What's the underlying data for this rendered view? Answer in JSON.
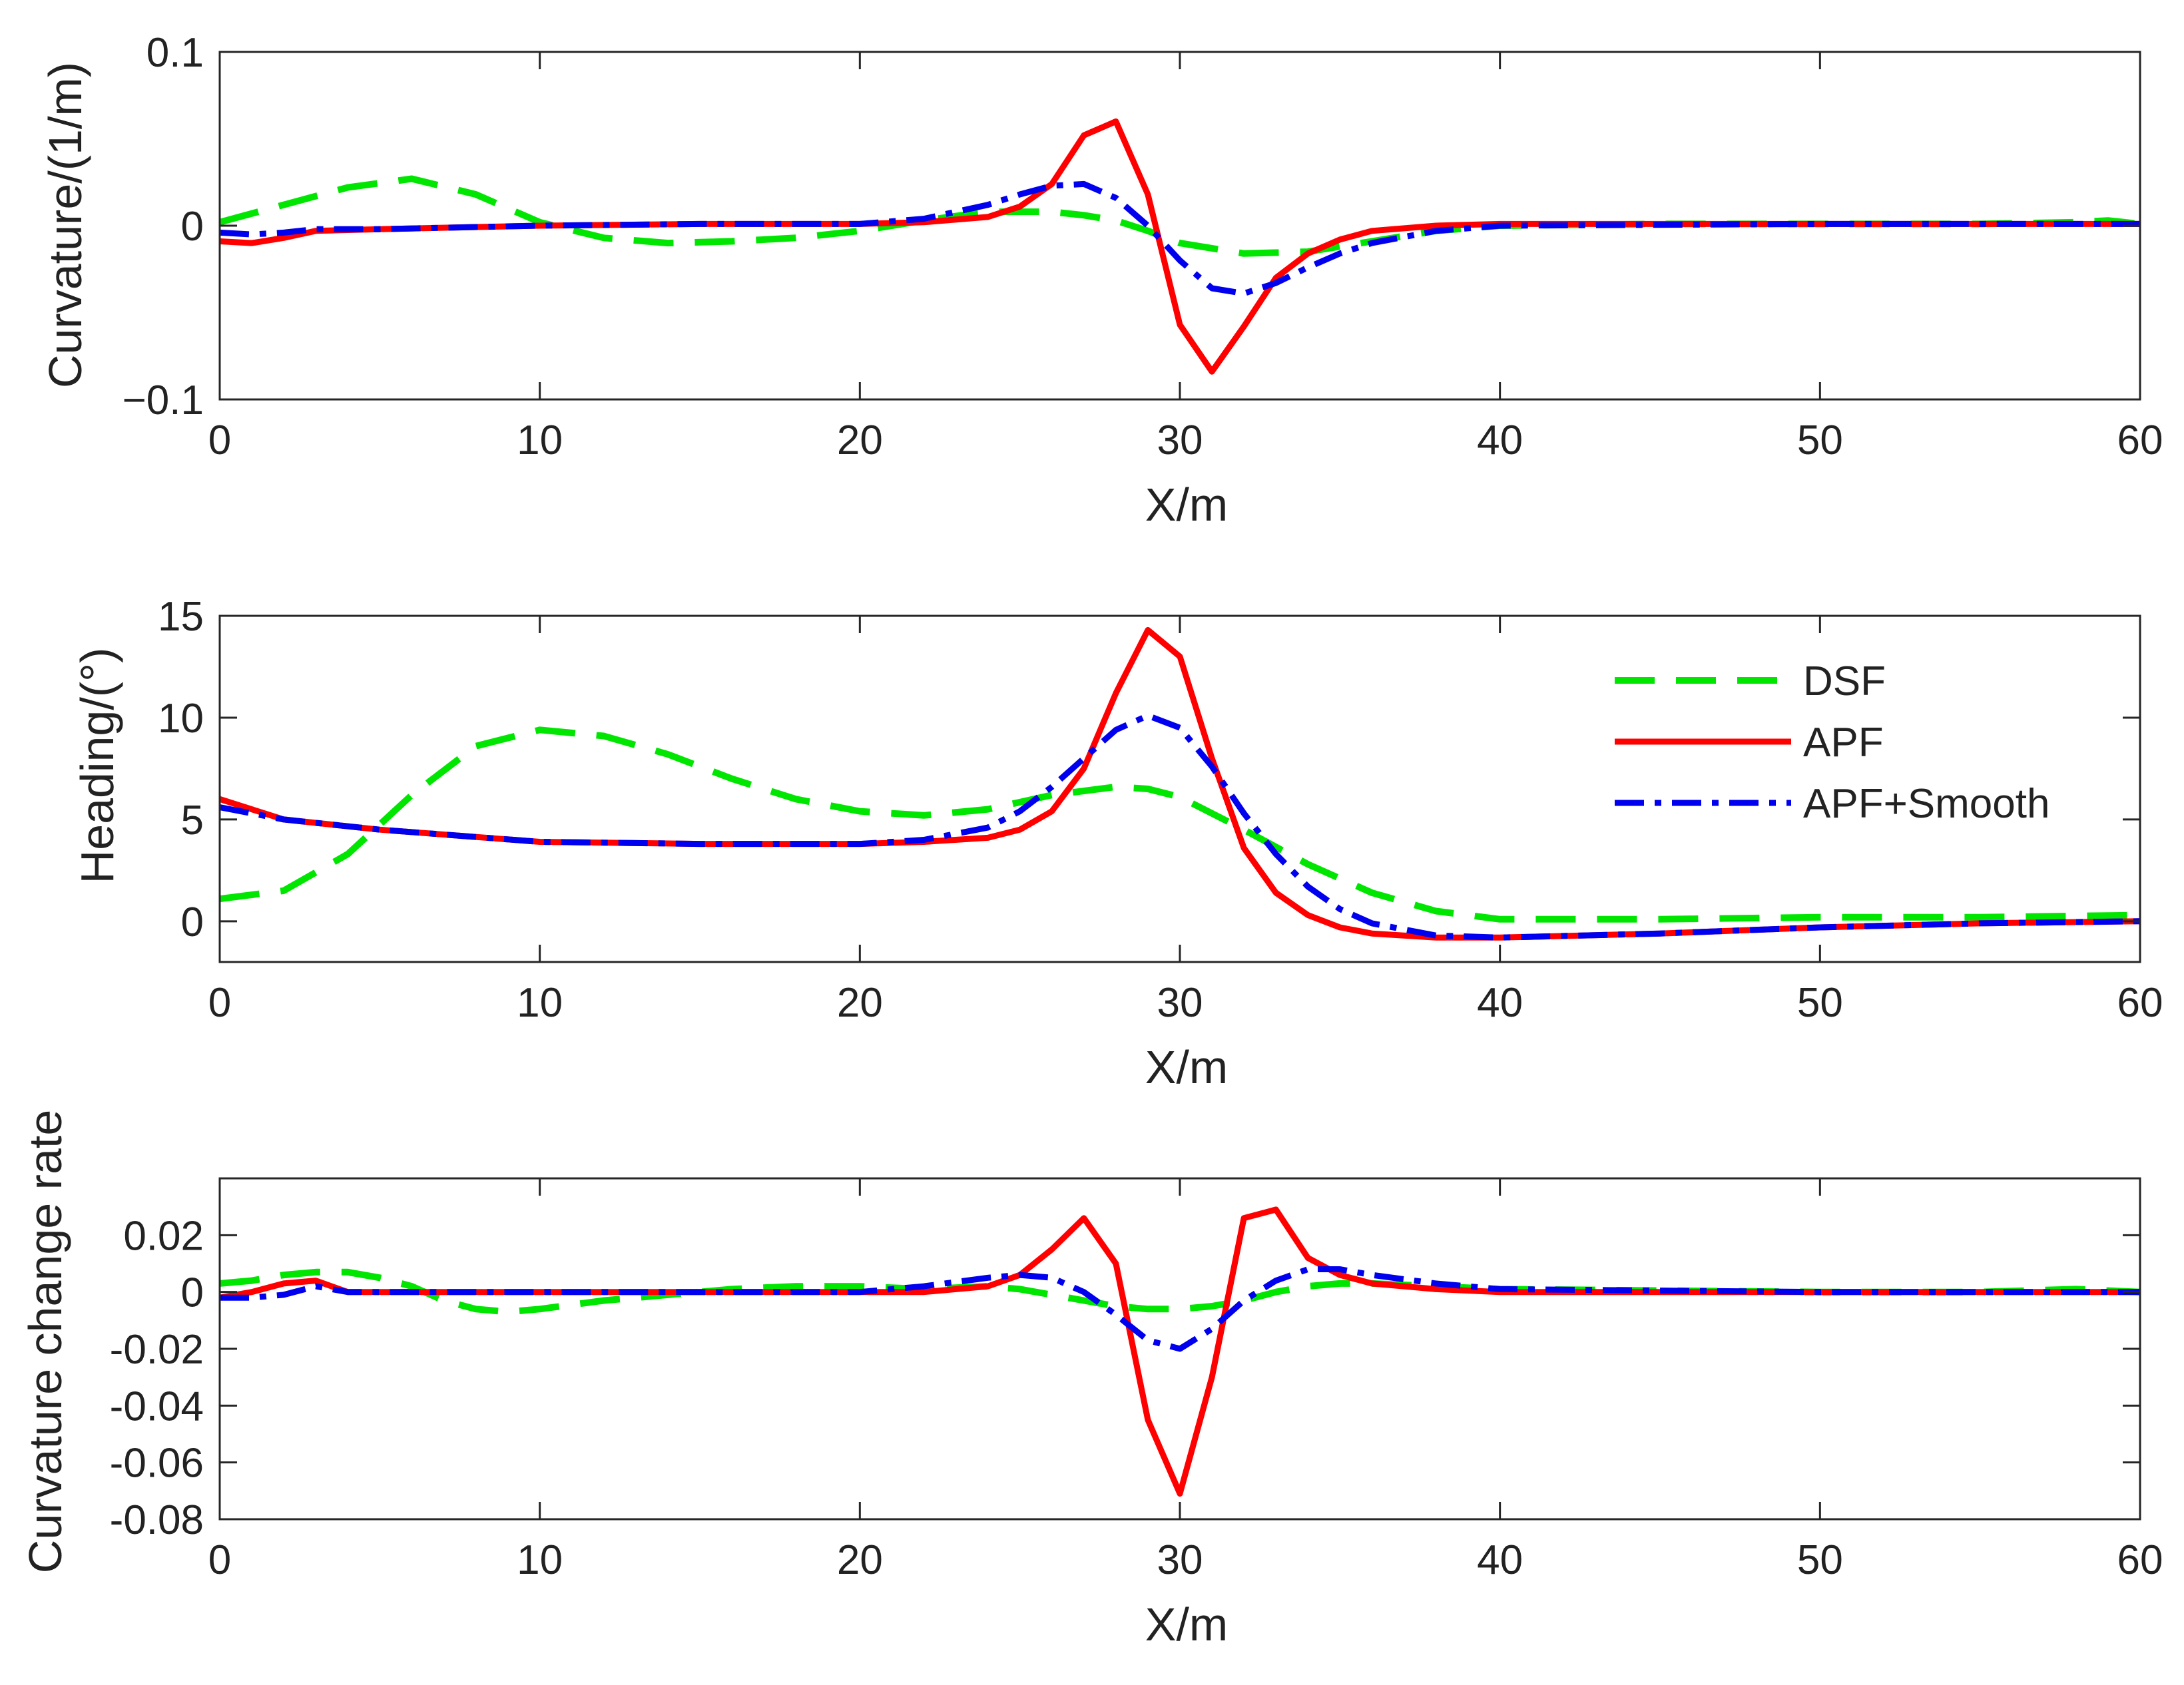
{
  "colors": {
    "dsf": "#00e600",
    "apf": "#ff0000",
    "smooth": "#0000ee",
    "axis": "#262626"
  },
  "legend": [
    {
      "key": "dsf",
      "label": "DSF"
    },
    {
      "key": "apf",
      "label": "APF"
    },
    {
      "key": "smooth",
      "label": "APF+Smooth"
    }
  ],
  "chart_data": [
    {
      "type": "line",
      "title": "",
      "xlabel": "X/m",
      "ylabel": "Curvature/(1/m)",
      "xlim": [
        0,
        60
      ],
      "ylim": [
        -0.1,
        0.1
      ],
      "xticks": [
        0,
        10,
        20,
        30,
        40,
        50,
        60
      ],
      "xtick_labels": [
        "0",
        "10",
        "20",
        "30",
        "40",
        "50",
        "60"
      ],
      "yticks": [
        -0.1,
        0,
        0.1
      ],
      "ytick_labels": [
        "−0.1",
        "0",
        "0.1"
      ],
      "grid": false,
      "series": [
        {
          "key": "dsf",
          "name": "DSF",
          "x": [
            0,
            2,
            4,
            6,
            8,
            10,
            12,
            14,
            16,
            18,
            20,
            22,
            24,
            26,
            27,
            28,
            29,
            30,
            32,
            34,
            36,
            38,
            40,
            45,
            50,
            55,
            58,
            59,
            60
          ],
          "y": [
            0.002,
            0.012,
            0.022,
            0.027,
            0.018,
            0.002,
            -0.007,
            -0.01,
            -0.009,
            -0.007,
            -0.003,
            0.003,
            0.008,
            0.008,
            0.006,
            0.003,
            -0.003,
            -0.01,
            -0.016,
            -0.015,
            -0.009,
            -0.003,
            0.0,
            0.001,
            0.001,
            0.001,
            0.002,
            0.003,
            0.001
          ]
        },
        {
          "key": "apf",
          "name": "APF",
          "x": [
            0,
            1,
            2,
            3,
            5,
            10,
            15,
            20,
            22,
            24,
            25,
            26,
            27,
            28,
            29,
            30,
            31,
            32,
            33,
            34,
            35,
            36,
            38,
            40,
            50,
            60
          ],
          "y": [
            -0.009,
            -0.01,
            -0.007,
            -0.003,
            -0.002,
            0.0,
            0.001,
            0.001,
            0.002,
            0.005,
            0.011,
            0.024,
            0.052,
            0.06,
            0.018,
            -0.057,
            -0.084,
            -0.058,
            -0.03,
            -0.016,
            -0.008,
            -0.003,
            0.0,
            0.001,
            0.001,
            0.001
          ]
        },
        {
          "key": "smooth",
          "name": "APF+Smooth",
          "x": [
            0,
            1,
            2,
            3,
            5,
            10,
            15,
            20,
            22,
            24,
            25,
            26,
            27,
            28,
            29,
            30,
            31,
            32,
            33,
            34,
            35,
            36,
            38,
            40,
            50,
            60
          ],
          "y": [
            -0.004,
            -0.005,
            -0.004,
            -0.002,
            -0.002,
            0.0,
            0.001,
            0.001,
            0.004,
            0.012,
            0.018,
            0.023,
            0.024,
            0.016,
            0.0,
            -0.02,
            -0.036,
            -0.039,
            -0.033,
            -0.024,
            -0.016,
            -0.01,
            -0.003,
            0.0,
            0.001,
            0.001
          ]
        }
      ]
    },
    {
      "type": "line",
      "title": "",
      "xlabel": "X/m",
      "ylabel": "Heading/(°)",
      "xlim": [
        0,
        60
      ],
      "ylim": [
        -2,
        15
      ],
      "xticks": [
        0,
        10,
        20,
        30,
        40,
        50,
        60
      ],
      "xtick_labels": [
        "0",
        "10",
        "20",
        "30",
        "40",
        "50",
        "60"
      ],
      "yticks": [
        0,
        5,
        10,
        15
      ],
      "ytick_labels": [
        "0",
        "5",
        "10",
        "15"
      ],
      "grid": false,
      "legend_position": "top-right",
      "series": [
        {
          "key": "dsf",
          "name": "DSF",
          "x": [
            0,
            2,
            4,
            6,
            8,
            10,
            12,
            14,
            16,
            18,
            20,
            22,
            24,
            26,
            28,
            29,
            30,
            32,
            34,
            36,
            38,
            40,
            45,
            50,
            55,
            60
          ],
          "y": [
            1.1,
            1.5,
            3.3,
            6.2,
            8.6,
            9.4,
            9.1,
            8.2,
            7.0,
            6.0,
            5.4,
            5.2,
            5.5,
            6.2,
            6.6,
            6.5,
            6.1,
            4.5,
            2.8,
            1.4,
            0.5,
            0.1,
            0.1,
            0.2,
            0.2,
            0.3
          ]
        },
        {
          "key": "apf",
          "name": "APF",
          "x": [
            0,
            2,
            5,
            10,
            15,
            20,
            22,
            24,
            25,
            26,
            27,
            28,
            29,
            30,
            31,
            32,
            33,
            34,
            35,
            36,
            38,
            40,
            45,
            50,
            55,
            60
          ],
          "y": [
            6.0,
            5.0,
            4.5,
            3.9,
            3.8,
            3.8,
            3.9,
            4.1,
            4.5,
            5.4,
            7.5,
            11.2,
            14.3,
            13.0,
            8.0,
            3.6,
            1.4,
            0.3,
            -0.3,
            -0.6,
            -0.8,
            -0.8,
            -0.6,
            -0.3,
            -0.1,
            0.0
          ]
        },
        {
          "key": "smooth",
          "name": "APF+Smooth",
          "x": [
            0,
            2,
            5,
            10,
            15,
            20,
            22,
            24,
            25,
            26,
            27,
            28,
            29,
            30,
            31,
            32,
            33,
            34,
            35,
            36,
            38,
            40,
            45,
            50,
            55,
            60
          ],
          "y": [
            5.6,
            5.0,
            4.5,
            3.9,
            3.8,
            3.8,
            4.0,
            4.6,
            5.4,
            6.6,
            8.0,
            9.4,
            10.1,
            9.5,
            7.6,
            5.3,
            3.3,
            1.7,
            0.6,
            -0.1,
            -0.7,
            -0.8,
            -0.6,
            -0.3,
            -0.1,
            0.0
          ]
        }
      ]
    },
    {
      "type": "line",
      "title": "",
      "xlabel": "X/m",
      "ylabel": "Curvature change rate",
      "xlim": [
        0,
        60
      ],
      "ylim": [
        -0.08,
        0.04
      ],
      "xticks": [
        0,
        10,
        20,
        30,
        40,
        50,
        60
      ],
      "xtick_labels": [
        "0",
        "10",
        "20",
        "30",
        "40",
        "50",
        "60"
      ],
      "yticks": [
        -0.08,
        -0.06,
        -0.04,
        -0.02,
        0,
        0.02
      ],
      "ytick_labels": [
        "-0.08",
        "-0.06",
        "-0.04",
        "-0.02",
        "0",
        "0.02"
      ],
      "grid": false,
      "series": [
        {
          "key": "dsf",
          "name": "DSF",
          "x": [
            0,
            1,
            2,
            3,
            4,
            5,
            6,
            7,
            8,
            9,
            10,
            12,
            14,
            16,
            18,
            20,
            22,
            24,
            25,
            26,
            27,
            28,
            29,
            30,
            31,
            32,
            33,
            34,
            35,
            36,
            38,
            40,
            50,
            55,
            58,
            60
          ],
          "y": [
            0.003,
            0.004,
            0.006,
            0.007,
            0.007,
            0.005,
            0.002,
            -0.003,
            -0.006,
            -0.007,
            -0.006,
            -0.003,
            -0.001,
            0.001,
            0.002,
            0.002,
            0.001,
            0.002,
            0.001,
            -0.001,
            -0.003,
            -0.005,
            -0.006,
            -0.006,
            -0.005,
            -0.003,
            0.0,
            0.002,
            0.003,
            0.003,
            0.002,
            0.001,
            0.0,
            0.0,
            0.001,
            0.0
          ]
        },
        {
          "key": "apf",
          "name": "APF",
          "x": [
            0,
            1,
            2,
            3,
            4,
            5,
            10,
            15,
            20,
            22,
            24,
            25,
            26,
            27,
            28,
            29,
            30,
            31,
            32,
            33,
            34,
            35,
            36,
            38,
            40,
            50,
            60
          ],
          "y": [
            -0.002,
            0.0,
            0.003,
            0.004,
            0.0,
            0.0,
            0.0,
            0.0,
            0.0,
            0.0,
            0.002,
            0.006,
            0.015,
            0.026,
            0.01,
            -0.045,
            -0.071,
            -0.03,
            0.026,
            0.029,
            0.012,
            0.006,
            0.003,
            0.001,
            0.0,
            0.0,
            0.0
          ]
        },
        {
          "key": "smooth",
          "name": "APF+Smooth",
          "x": [
            0,
            1,
            2,
            3,
            4,
            5,
            10,
            15,
            20,
            22,
            24,
            25,
            26,
            27,
            28,
            29,
            30,
            31,
            32,
            33,
            34,
            35,
            36,
            38,
            40,
            50,
            60
          ],
          "y": [
            -0.002,
            -0.002,
            -0.001,
            0.002,
            0.0,
            0.0,
            0.0,
            0.0,
            0.0,
            0.002,
            0.005,
            0.006,
            0.005,
            0.0,
            -0.008,
            -0.017,
            -0.02,
            -0.013,
            -0.003,
            0.004,
            0.008,
            0.008,
            0.006,
            0.003,
            0.001,
            0.0,
            0.0
          ]
        }
      ]
    }
  ]
}
